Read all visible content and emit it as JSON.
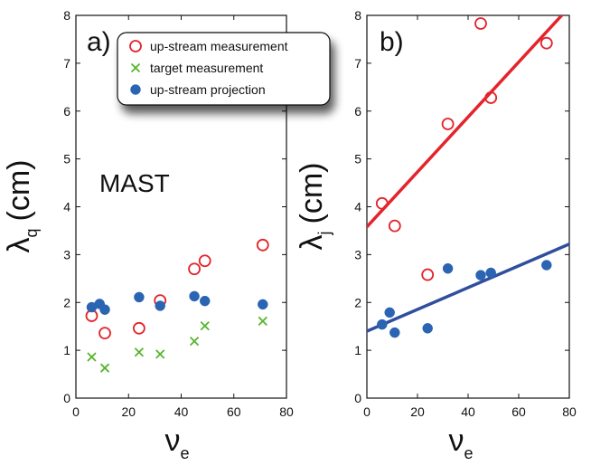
{
  "colors": {
    "upstream_measurement": "#e3242b",
    "target_measurement": "#55b52c",
    "upstream_projection": "#2a64b2",
    "fit_upstream": "#e3242b",
    "fit_projection": "#2f4f9e",
    "axis": "#111111"
  },
  "chart_data": [
    {
      "type": "scatter",
      "panel_label": "a)",
      "xlabel": "ν",
      "xlabel_sub": "e",
      "ylabel": "λ",
      "ylabel_sub": "q",
      "ylabel_unit": "(cm)",
      "annotation": "MAST",
      "xlim": [
        0,
        80
      ],
      "ylim": [
        0,
        8
      ],
      "xticks": [
        0,
        20,
        40,
        60,
        80
      ],
      "yticks": [
        0,
        1,
        2,
        3,
        4,
        5,
        6,
        7,
        8
      ],
      "grid": false,
      "legend_position": "top-right",
      "legend": [
        {
          "label": "up-stream measurement",
          "marker": "open-circle",
          "color_key": "upstream_measurement"
        },
        {
          "label": "target measurement",
          "marker": "cross",
          "color_key": "target_measurement"
        },
        {
          "label": "up-stream projection",
          "marker": "filled-circle",
          "color_key": "upstream_projection"
        }
      ],
      "series": [
        {
          "name": "up-stream measurement",
          "marker": "open-circle",
          "color_key": "upstream_measurement",
          "points": [
            [
              6,
              1.72
            ],
            [
              11,
              1.36
            ],
            [
              24,
              1.46
            ],
            [
              32,
              2.04
            ],
            [
              45,
              2.7
            ],
            [
              49,
              2.87
            ],
            [
              71,
              3.2
            ]
          ]
        },
        {
          "name": "target measurement",
          "marker": "cross",
          "color_key": "target_measurement",
          "points": [
            [
              6,
              0.86
            ],
            [
              11,
              0.63
            ],
            [
              24,
              0.96
            ],
            [
              32,
              0.92
            ],
            [
              45,
              1.19
            ],
            [
              49,
              1.51
            ],
            [
              71,
              1.61
            ]
          ]
        },
        {
          "name": "up-stream projection",
          "marker": "filled-circle",
          "color_key": "upstream_projection",
          "points": [
            [
              6,
              1.9
            ],
            [
              9,
              1.97
            ],
            [
              11,
              1.85
            ],
            [
              24,
              2.11
            ],
            [
              32,
              1.93
            ],
            [
              45,
              2.13
            ],
            [
              49,
              2.03
            ],
            [
              71,
              1.96
            ]
          ]
        }
      ]
    },
    {
      "type": "scatter",
      "panel_label": "b)",
      "xlabel": "ν",
      "xlabel_sub": "e",
      "ylabel": "λ",
      "ylabel_sub": "j",
      "ylabel_unit": "(cm)",
      "xlim": [
        0,
        80
      ],
      "ylim": [
        0,
        8
      ],
      "xticks": [
        0,
        20,
        40,
        60,
        80
      ],
      "yticks": [
        0,
        1,
        2,
        3,
        4,
        5,
        6,
        7,
        8
      ],
      "grid": false,
      "series": [
        {
          "marker": "open-circle",
          "color_key": "upstream_measurement",
          "points": [
            [
              6,
              4.07
            ],
            [
              11,
              3.6
            ],
            [
              24,
              2.58
            ],
            [
              32,
              5.73
            ],
            [
              45,
              7.83
            ],
            [
              49,
              6.28
            ],
            [
              71,
              7.42
            ]
          ]
        },
        {
          "marker": "filled-circle",
          "color_key": "upstream_projection",
          "points": [
            [
              6,
              1.54
            ],
            [
              9,
              1.79
            ],
            [
              11,
              1.37
            ],
            [
              24,
              1.46
            ],
            [
              32,
              2.71
            ],
            [
              45,
              2.57
            ],
            [
              49,
              2.62
            ],
            [
              71,
              2.78
            ]
          ]
        }
      ],
      "fit_lines": [
        {
          "color_key": "fit_upstream",
          "x": [
            0,
            77
          ],
          "y": [
            3.58,
            8.0
          ]
        },
        {
          "color_key": "fit_projection",
          "x": [
            0,
            80
          ],
          "y": [
            1.4,
            3.22
          ]
        }
      ]
    }
  ]
}
